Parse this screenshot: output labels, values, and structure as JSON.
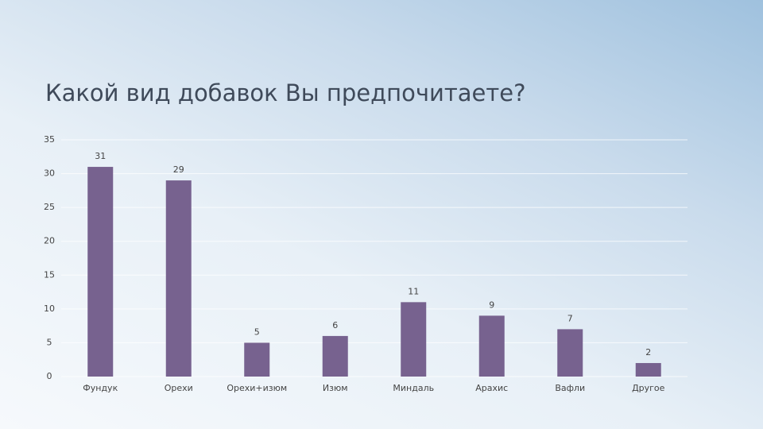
{
  "chart_data": {
    "type": "bar",
    "title": "Какой вид добавок Вы предпочитаете?",
    "categories": [
      "Фундук",
      "Орехи",
      "Орехи+изюм",
      "Изюм",
      "Миндаль",
      "Арахис",
      "Вафли",
      "Другое"
    ],
    "values": [
      31,
      29,
      5,
      6,
      11,
      9,
      7,
      2
    ],
    "color": "#77628f",
    "ylim": [
      0,
      35
    ],
    "yticks": [
      0,
      5,
      10,
      15,
      20,
      25,
      30,
      35
    ],
    "grid": true
  }
}
